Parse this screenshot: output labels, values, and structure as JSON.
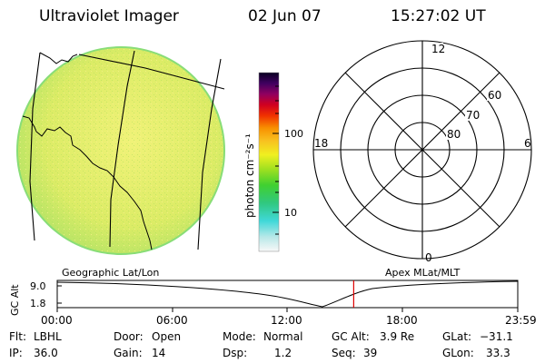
{
  "header": {
    "title": "Ultraviolet Imager",
    "date": "02 Jun 07",
    "time": "15:27:02 UT"
  },
  "colorbar": {
    "unit_label": "photon cm⁻²s⁻¹",
    "ticks": [
      "100",
      "10"
    ]
  },
  "polar": {
    "mlt_labels": [
      "12",
      "18",
      "6",
      "0"
    ],
    "lat_labels": [
      "60",
      "70",
      "80"
    ]
  },
  "panel_labels": {
    "left": "Geographic Lat/Lon",
    "right": "Apex MLat/MLT"
  },
  "altitude_plot": {
    "axis_label": "GC Alt",
    "y_ticks": [
      "9.0",
      "1.8"
    ],
    "x_ticks": [
      "00:00",
      "06:00",
      "12:00",
      "18:00",
      "23:59"
    ],
    "marker_hour": 15.45
  },
  "status": {
    "flt_label": "Flt:",
    "flt_value": "LBHL",
    "ip_label": "IP:",
    "ip_value": "36.0",
    "door_label": "Door:",
    "door_value": "Open",
    "gain_label": "Gain:",
    "gain_value": "14",
    "mode_label": "Mode:",
    "mode_value": "Normal",
    "dsp_label": "Dsp:",
    "dsp_value": "1.2",
    "gcalt_label": "GC Alt:",
    "gcalt_value": "3.9 Re",
    "seq_label": "Seq:",
    "seq_value": "39",
    "glat_label": "GLat:",
    "glat_value": "−31.1",
    "glon_label": "GLon:",
    "glon_value": "33.3"
  },
  "colors": {
    "image_fill": "#e2ee6a",
    "image_edge": "#8fe06a",
    "marker": "#dd0000"
  }
}
